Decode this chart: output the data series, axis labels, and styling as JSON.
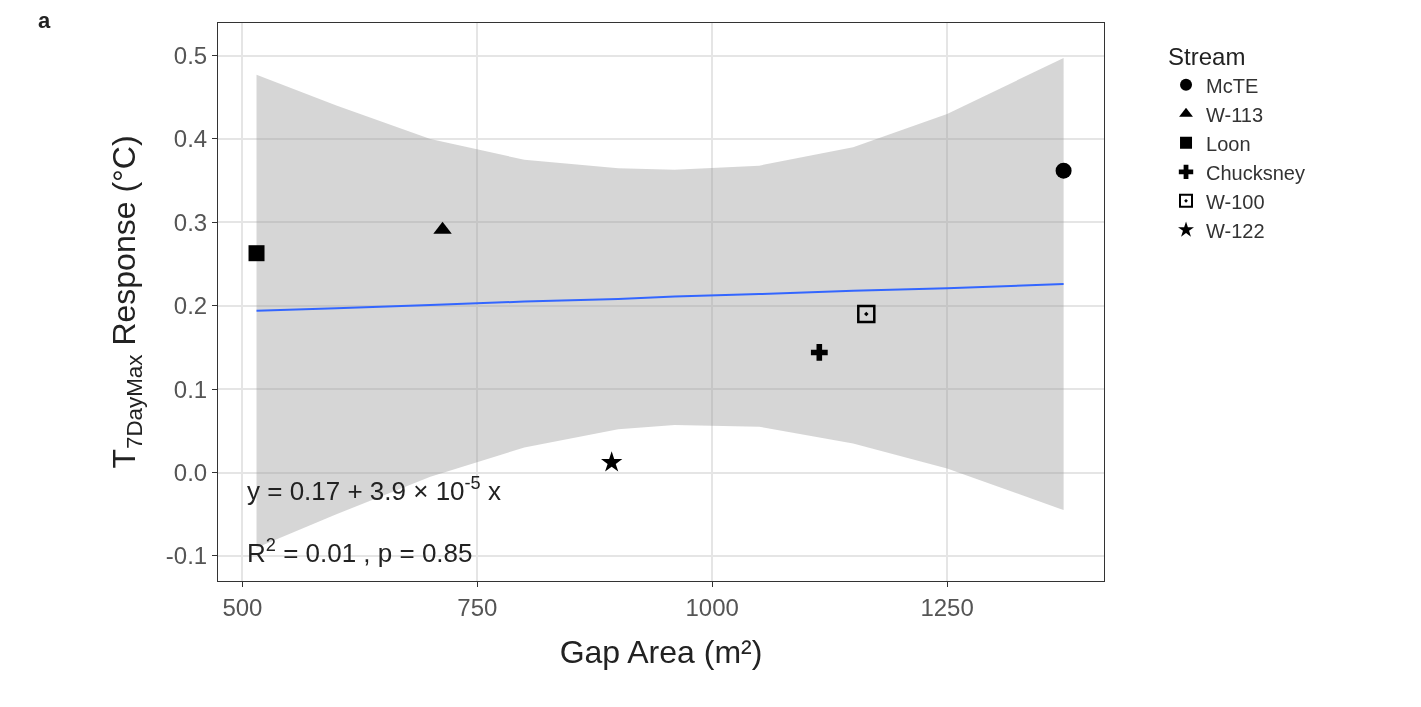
{
  "chart_data": {
    "type": "scatter",
    "xlabel": "Gap Area (m²)",
    "ylabel": "T$_{7DayMax}$ Response (°C)",
    "legend_title": "Stream",
    "annotations": [
      "y = 0.17 + 3.9 × 10$^{-5}$ x",
      "R$^{2}$ = 0.01 , p = 0.85",
      "a"
    ],
    "xlim": [
      474,
      1417
    ],
    "xticks": [
      500,
      750,
      1000,
      1250
    ],
    "ylim": [
      -0.13,
      0.539
    ],
    "yticks": [
      {
        "value": -0.1,
        "label": "-0.1"
      },
      {
        "value": 0,
        "label": "0.0"
      },
      0.1,
      0.2,
      0.3,
      0.4,
      0.5
    ],
    "grid": true,
    "legend": "right",
    "series": [
      {
        "name": "McTE",
        "color": "#000000",
        "marker": "circle",
        "x": [
          1374
        ],
        "values": [
          0.362
        ]
      },
      {
        "name": "W-113",
        "color": "#000000",
        "marker": "triangle",
        "x": [
          713
        ],
        "values": [
          0.291
        ]
      },
      {
        "name": "Loon",
        "color": "#000000",
        "marker": "square",
        "x": [
          515
        ],
        "values": [
          0.263
        ]
      },
      {
        "name": "Chucksney",
        "color": "#000000",
        "marker": "cross",
        "x": [
          1114
        ],
        "values": [
          0.144
        ]
      },
      {
        "name": "W-100",
        "color": "#000000",
        "marker": "square",
        "x": [
          1164
        ],
        "values": [
          0.19
        ]
      },
      {
        "name": "W-122",
        "color": "#000000",
        "marker": "star",
        "x": [
          893
        ],
        "values": [
          0.012
        ]
      },
      {
        "type": "line",
        "color": "#3366ff",
        "x": [
          515,
          600,
          700,
          800,
          900,
          960,
          1050,
          1150,
          1250,
          1374
        ],
        "values": [
          0.194,
          0.197,
          0.201,
          0.205,
          0.208,
          0.211,
          0.214,
          0.218,
          0.221,
          0.226
        ],
        "lower": [
          -0.09,
          -0.05,
          -0.005,
          0.03,
          0.052,
          0.057,
          0.055,
          0.035,
          0.005,
          -0.045
        ],
        "upper": [
          0.477,
          0.44,
          0.4,
          0.375,
          0.365,
          0.363,
          0.368,
          0.39,
          0.43,
          0.497
        ]
      }
    ]
  }
}
